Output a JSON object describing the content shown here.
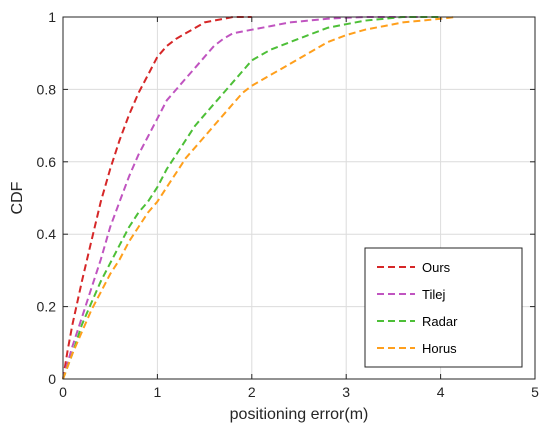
{
  "chart_data": {
    "type": "line",
    "title": "",
    "xlabel": "positioning error(m)",
    "ylabel": "CDF",
    "xlim": [
      0,
      5
    ],
    "ylim": [
      0,
      1
    ],
    "xticks": [
      0,
      1,
      2,
      3,
      4,
      5
    ],
    "yticks": [
      0,
      0.2,
      0.4,
      0.6,
      0.8,
      1
    ],
    "xtick_labels": [
      "0",
      "1",
      "2",
      "3",
      "4",
      "5"
    ],
    "ytick_labels": [
      "0",
      "0.2",
      "0.4",
      "0.6",
      "0.8",
      "1"
    ],
    "grid": true,
    "legend_position": "bottom-right",
    "series": [
      {
        "name": "Ours",
        "color": "#d62728",
        "x": [
          0,
          0.05,
          0.1,
          0.2,
          0.3,
          0.4,
          0.5,
          0.6,
          0.7,
          0.8,
          0.9,
          1.0,
          1.1,
          1.2,
          1.3,
          1.4,
          1.5,
          1.6,
          1.7,
          1.8,
          1.9,
          2.0
        ],
        "y": [
          0,
          0.08,
          0.15,
          0.27,
          0.38,
          0.49,
          0.58,
          0.66,
          0.73,
          0.79,
          0.84,
          0.89,
          0.92,
          0.94,
          0.955,
          0.97,
          0.985,
          0.99,
          0.995,
          1.0,
          1.0,
          1.0
        ]
      },
      {
        "name": "Tilej",
        "color": "#c054c0",
        "x": [
          0,
          0.1,
          0.2,
          0.3,
          0.4,
          0.5,
          0.6,
          0.7,
          0.8,
          0.9,
          1.0,
          1.1,
          1.2,
          1.3,
          1.4,
          1.5,
          1.6,
          1.7,
          1.8,
          1.9,
          2.0,
          2.2,
          2.4,
          2.6,
          2.8,
          3.0,
          3.2,
          3.5,
          3.8
        ],
        "y": [
          0,
          0.09,
          0.17,
          0.25,
          0.33,
          0.42,
          0.49,
          0.56,
          0.62,
          0.67,
          0.72,
          0.77,
          0.8,
          0.83,
          0.86,
          0.89,
          0.92,
          0.94,
          0.955,
          0.96,
          0.965,
          0.975,
          0.985,
          0.99,
          0.995,
          0.998,
          1.0,
          1.0,
          1.0
        ]
      },
      {
        "name": "Radar",
        "color": "#4dbf37",
        "x": [
          0,
          0.1,
          0.2,
          0.3,
          0.4,
          0.5,
          0.6,
          0.7,
          0.8,
          0.9,
          1.0,
          1.1,
          1.2,
          1.3,
          1.4,
          1.5,
          1.6,
          1.7,
          1.8,
          1.9,
          2.0,
          2.2,
          2.4,
          2.6,
          2.8,
          3.0,
          3.2,
          3.4,
          3.6,
          3.8,
          4.0
        ],
        "y": [
          0,
          0.07,
          0.15,
          0.21,
          0.27,
          0.32,
          0.37,
          0.42,
          0.46,
          0.49,
          0.53,
          0.58,
          0.62,
          0.66,
          0.7,
          0.73,
          0.76,
          0.79,
          0.82,
          0.85,
          0.88,
          0.91,
          0.93,
          0.95,
          0.97,
          0.98,
          0.99,
          0.995,
          1.0,
          1.0,
          1.0
        ]
      },
      {
        "name": "Horus",
        "color": "#ff9f1c",
        "x": [
          0,
          0.1,
          0.2,
          0.3,
          0.4,
          0.5,
          0.6,
          0.7,
          0.8,
          0.9,
          1.0,
          1.1,
          1.2,
          1.3,
          1.4,
          1.5,
          1.6,
          1.7,
          1.8,
          1.9,
          2.0,
          2.2,
          2.4,
          2.6,
          2.8,
          3.0,
          3.2,
          3.4,
          3.6,
          3.8,
          4.0,
          4.15
        ],
        "y": [
          0,
          0.07,
          0.13,
          0.19,
          0.24,
          0.29,
          0.33,
          0.38,
          0.42,
          0.46,
          0.49,
          0.53,
          0.57,
          0.61,
          0.64,
          0.67,
          0.7,
          0.73,
          0.76,
          0.79,
          0.81,
          0.84,
          0.87,
          0.9,
          0.93,
          0.95,
          0.965,
          0.975,
          0.985,
          0.99,
          0.995,
          1.0
        ]
      }
    ]
  }
}
